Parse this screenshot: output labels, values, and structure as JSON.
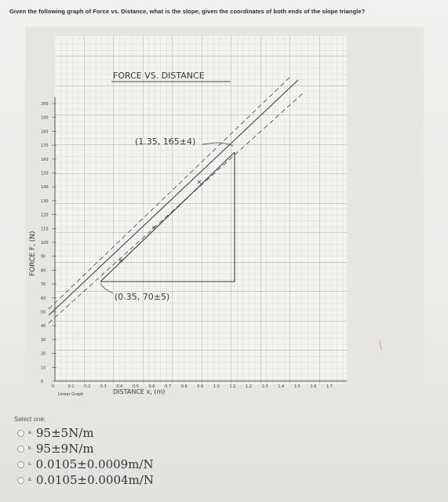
{
  "question": "Given the following graph of Force vs. Distance, what is the slope, given the coordinates of both ends of the slope triangle?",
  "graph": {
    "title": "FORCE VS. DISTANCE",
    "y_label": "FORCE F, (N)",
    "x_label": "DISTANCE x, (m)",
    "paper_caption": "Linear Graph",
    "point_top": "(1.35, 165±4)",
    "point_bottom": "(0.35, 70±5)",
    "y_ticks": [
      "200",
      "190",
      "180",
      "170",
      "160",
      "150",
      "140",
      "130",
      "120",
      "110",
      "100",
      "90",
      "80",
      "70",
      "60",
      "50",
      "40",
      "30",
      "20",
      "10",
      "0"
    ],
    "x_ticks": [
      "0",
      "0.1",
      "0.2",
      "0.3",
      "0.4",
      "0.5",
      "0.6",
      "0.7",
      "0.8",
      "0.9",
      "1.0",
      "1.1",
      "1.2",
      "1.3",
      "1.4",
      "1.5",
      "1.6",
      "1.7"
    ]
  },
  "select_label": "Select one:",
  "options": [
    {
      "letter": "a.",
      "text": "95±5N/m"
    },
    {
      "letter": "b.",
      "text": "95±9N/m"
    },
    {
      "letter": "c.",
      "text": "0.0105±0.0009m/N"
    },
    {
      "letter": "d.",
      "text": "0.0105±0.0004m/N"
    }
  ]
}
